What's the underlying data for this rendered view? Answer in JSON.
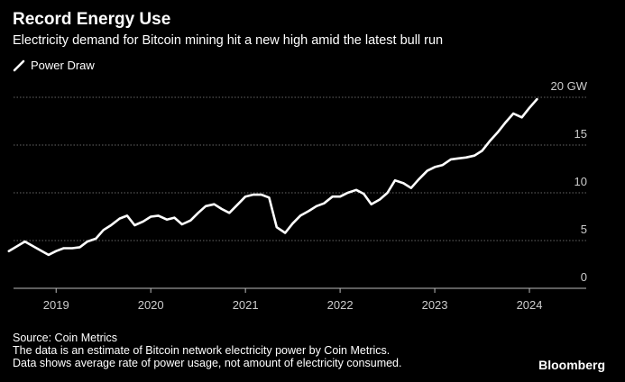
{
  "header": {
    "title": "Record Energy Use",
    "subtitle": "Electricity demand for Bitcoin mining hit a new high amid the latest bull run"
  },
  "colors": {
    "background": "#000000",
    "line": "#ffffff",
    "grid": "#666666",
    "text": "#ffffff",
    "tick_text": "#cccccc"
  },
  "chart_data": {
    "type": "line",
    "legend": {
      "position": "top-left"
    },
    "grid": true,
    "xlim": [
      2018.55,
      2024.6
    ],
    "ylim": [
      0,
      20
    ],
    "yunit": "GW",
    "y_ticks": [
      {
        "value": 0,
        "label": "0"
      },
      {
        "value": 5,
        "label": "5"
      },
      {
        "value": 10,
        "label": "10"
      },
      {
        "value": 15,
        "label": "15"
      },
      {
        "value": 20,
        "label": "20 GW"
      }
    ],
    "x_ticks": [
      {
        "value": 2019,
        "label": "2019"
      },
      {
        "value": 2020,
        "label": "2020"
      },
      {
        "value": 2021,
        "label": "2021"
      },
      {
        "value": 2022,
        "label": "2022"
      },
      {
        "value": 2023,
        "label": "2023"
      },
      {
        "value": 2024,
        "label": "2024"
      }
    ],
    "series": [
      {
        "name": "Power Draw",
        "x": [
          2018.5,
          2018.67,
          2018.83,
          2018.92,
          2019.0,
          2019.08,
          2019.17,
          2019.25,
          2019.33,
          2019.42,
          2019.5,
          2019.58,
          2019.67,
          2019.75,
          2019.83,
          2019.92,
          2020.0,
          2020.08,
          2020.17,
          2020.25,
          2020.33,
          2020.42,
          2020.5,
          2020.58,
          2020.67,
          2020.75,
          2020.83,
          2020.92,
          2021.0,
          2021.08,
          2021.17,
          2021.25,
          2021.33,
          2021.42,
          2021.5,
          2021.58,
          2021.67,
          2021.75,
          2021.83,
          2021.92,
          2022.0,
          2022.08,
          2022.17,
          2022.25,
          2022.33,
          2022.42,
          2022.5,
          2022.58,
          2022.67,
          2022.75,
          2022.83,
          2022.92,
          2023.0,
          2023.08,
          2023.17,
          2023.25,
          2023.33,
          2023.42,
          2023.5,
          2023.58,
          2023.67,
          2023.75,
          2023.83,
          2023.92,
          2024.0,
          2024.08
        ],
        "values": [
          3.9,
          4.9,
          4.0,
          3.5,
          3.9,
          4.2,
          4.2,
          4.3,
          4.9,
          5.2,
          6.1,
          6.6,
          7.3,
          7.6,
          6.6,
          7.0,
          7.5,
          7.6,
          7.2,
          7.4,
          6.7,
          7.1,
          7.9,
          8.6,
          8.8,
          8.3,
          7.9,
          8.8,
          9.6,
          9.8,
          9.8,
          9.5,
          6.4,
          5.8,
          6.8,
          7.6,
          8.1,
          8.6,
          8.9,
          9.6,
          9.6,
          10.0,
          10.3,
          9.9,
          8.8,
          9.3,
          10.0,
          11.3,
          11.0,
          10.5,
          11.4,
          12.3,
          12.7,
          12.9,
          13.5,
          13.6,
          13.7,
          13.9,
          14.4,
          15.4,
          16.4,
          17.4,
          18.3,
          17.9,
          18.9,
          19.8
        ]
      }
    ]
  },
  "source": [
    "Source: Coin Metrics",
    "The data is an estimate of Bitcoin network electricity power by Coin Metrics.",
    "Data shows average rate of power usage, not amount of electricity consumed."
  ],
  "brand": "Bloomberg"
}
